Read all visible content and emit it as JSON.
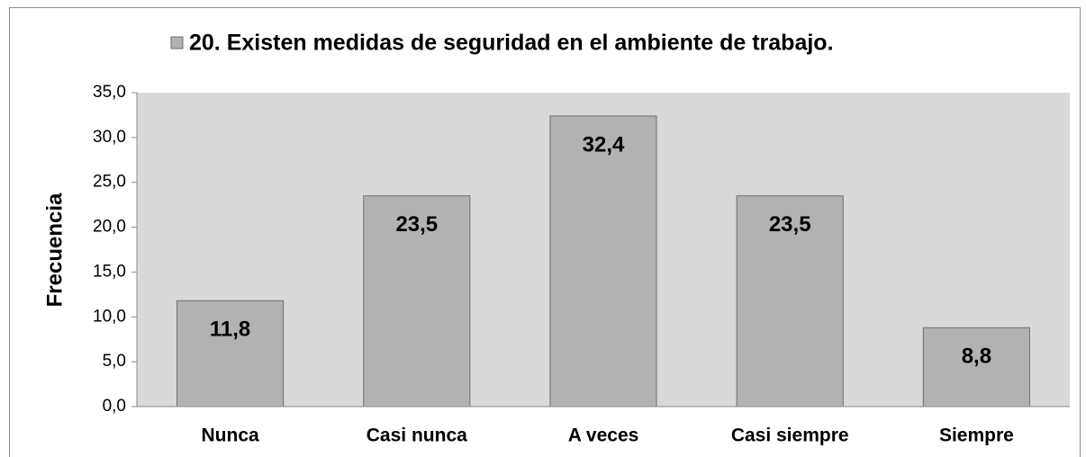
{
  "chart_data": {
    "type": "bar",
    "ylabel": "Frecuencia",
    "categories": [
      "Nunca",
      "Casi nunca",
      "A veces",
      "Casi siempre",
      "Siempre"
    ],
    "series": [
      {
        "name": "20. Existen medidas de seguridad en el ambiente de trabajo.",
        "color": "#b2b2b2",
        "values": [
          11.8,
          23.5,
          32.4,
          23.5,
          8.8
        ],
        "value_labels": [
          "11,8",
          "23,5",
          "32,4",
          "23,5",
          "8,8"
        ]
      }
    ],
    "ylim": [
      0,
      35
    ],
    "yticks": [
      {
        "value": 0,
        "label": "0,0"
      },
      {
        "value": 5,
        "label": "5,0"
      },
      {
        "value": 10,
        "label": "10,0"
      },
      {
        "value": 15,
        "label": "15,0"
      },
      {
        "value": 20,
        "label": "20,0"
      },
      {
        "value": 25,
        "label": "25,0"
      },
      {
        "value": 30,
        "label": "30,0"
      },
      {
        "value": 35,
        "label": "35,0"
      }
    ],
    "grid": false,
    "legend": "top"
  }
}
